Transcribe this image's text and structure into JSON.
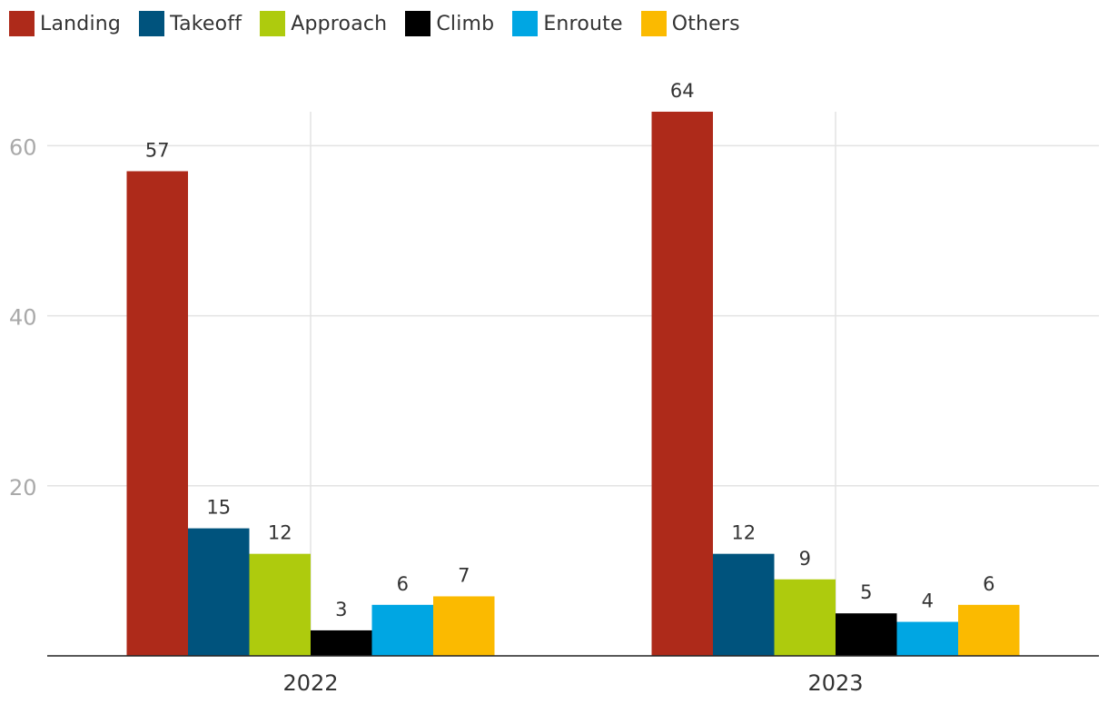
{
  "chart_data": {
    "type": "bar",
    "categories": [
      "2022",
      "2023"
    ],
    "series": [
      {
        "name": "Landing",
        "color": "#AE2A1A",
        "values": [
          57,
          64
        ]
      },
      {
        "name": "Takeoff",
        "color": "#00537D",
        "values": [
          15,
          12
        ]
      },
      {
        "name": "Approach",
        "color": "#AECB0D",
        "values": [
          12,
          9
        ]
      },
      {
        "name": "Climb",
        "color": "#000000",
        "values": [
          3,
          5
        ]
      },
      {
        "name": "Enroute",
        "color": "#00A6E3",
        "values": [
          6,
          4
        ]
      },
      {
        "name": "Others",
        "color": "#FBBA00",
        "values": [
          7,
          6
        ]
      }
    ],
    "yticks": [
      "20",
      "40",
      "60"
    ],
    "ytick_values": [
      20,
      40,
      60
    ],
    "ylim": [
      0,
      64
    ],
    "grid": true,
    "legend_position": "top-left",
    "title": "",
    "xlabel": "",
    "ylabel": ""
  }
}
